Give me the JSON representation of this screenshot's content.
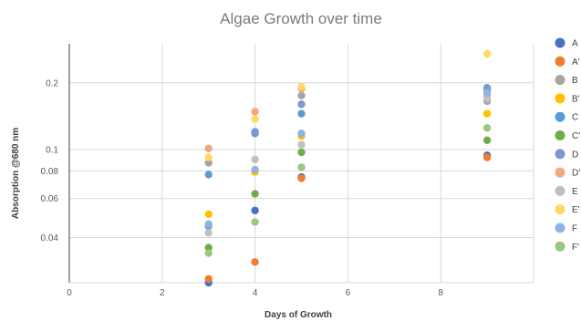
{
  "chart_data": {
    "type": "scatter",
    "title": "Algae Growth over time",
    "xlabel": "Days of Growth",
    "ylabel": "Absorption @680 nm",
    "xlim": [
      0,
      10
    ],
    "ylim": [
      0.025,
      0.3
    ],
    "yscale": "log",
    "xticks": [
      0,
      2,
      4,
      6,
      8
    ],
    "yticks": [
      0.04,
      0.06,
      0.08,
      0.1,
      0.2
    ],
    "ytick_labels": [
      "0.04",
      "0.06",
      "0.08",
      "0.1",
      "0.2"
    ],
    "grid": true,
    "legend_position": "right",
    "series": [
      {
        "name": "A",
        "color": "#4472C4",
        "points": [
          [
            3,
            0.025
          ],
          [
            4,
            0.053
          ],
          [
            5,
            0.075
          ],
          [
            9,
            0.094
          ]
        ]
      },
      {
        "name": "A'",
        "color": "#ED7D31",
        "points": [
          [
            3,
            0.026
          ],
          [
            4,
            0.031
          ],
          [
            5,
            0.074
          ],
          [
            9,
            0.092
          ]
        ]
      },
      {
        "name": "B",
        "color": "#A5A5A5",
        "points": [
          [
            3,
            0.087
          ],
          [
            4,
            0.12
          ],
          [
            5,
            0.175
          ],
          [
            9,
            0.165
          ]
        ]
      },
      {
        "name": "B'",
        "color": "#FFC000",
        "points": [
          [
            3,
            0.051
          ],
          [
            4,
            0.079
          ],
          [
            5,
            0.115
          ],
          [
            9,
            0.145
          ]
        ]
      },
      {
        "name": "C",
        "color": "#5B9BD5",
        "points": [
          [
            3,
            0.077
          ],
          [
            4,
            0.118
          ],
          [
            5,
            0.145
          ],
          [
            9,
            0.185
          ]
        ]
      },
      {
        "name": "C'",
        "color": "#70AD47",
        "points": [
          [
            3,
            0.036
          ],
          [
            4,
            0.063
          ],
          [
            5,
            0.097
          ],
          [
            9,
            0.11
          ]
        ]
      },
      {
        "name": "D",
        "color": "#7F96D4",
        "points": [
          [
            3,
            0.045
          ],
          [
            4,
            0.12
          ],
          [
            5,
            0.16
          ],
          [
            9,
            0.19
          ]
        ]
      },
      {
        "name": "D'",
        "color": "#F4A582",
        "points": [
          [
            3,
            0.101
          ],
          [
            4,
            0.148
          ],
          [
            5,
            0.188
          ],
          [
            9,
            0.175
          ]
        ]
      },
      {
        "name": "E",
        "color": "#C0C0C0",
        "points": [
          [
            3,
            0.042
          ],
          [
            4,
            0.09
          ],
          [
            5,
            0.105
          ],
          [
            9,
            0.17
          ]
        ]
      },
      {
        "name": "E'",
        "color": "#FFD966",
        "points": [
          [
            3,
            0.092
          ],
          [
            4,
            0.137
          ],
          [
            5,
            0.192
          ],
          [
            9,
            0.27
          ]
        ]
      },
      {
        "name": "F",
        "color": "#8DB4E2",
        "points": [
          [
            3,
            0.046
          ],
          [
            4,
            0.081
          ],
          [
            5,
            0.118
          ],
          [
            9,
            0.18
          ]
        ]
      },
      {
        "name": "F'",
        "color": "#9BC77E",
        "points": [
          [
            3,
            0.034
          ],
          [
            4,
            0.047
          ],
          [
            5,
            0.083
          ],
          [
            9,
            0.125
          ]
        ]
      }
    ]
  }
}
